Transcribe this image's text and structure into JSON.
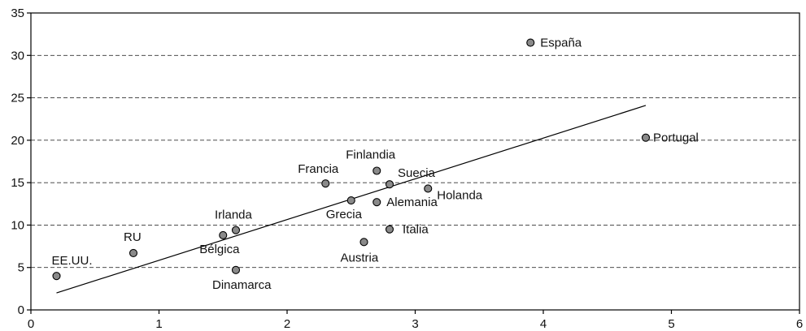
{
  "chart_data": {
    "type": "scatter",
    "title": "",
    "xlabel": "",
    "ylabel": "",
    "xlim": [
      0,
      6
    ],
    "ylim": [
      0,
      35
    ],
    "xticks": [
      0,
      1,
      2,
      3,
      4,
      5,
      6
    ],
    "yticks": [
      0,
      5,
      10,
      15,
      20,
      25,
      30,
      35
    ],
    "grid": "horizontal-dashed",
    "points": [
      {
        "label": "EE.UU.",
        "x": 0.2,
        "y": 4.0
      },
      {
        "label": "RU",
        "x": 0.8,
        "y": 6.7
      },
      {
        "label": "Bélgica",
        "x": 1.5,
        "y": 8.8
      },
      {
        "label": "Irlanda",
        "x": 1.6,
        "y": 9.4
      },
      {
        "label": "Dinamarca",
        "x": 1.6,
        "y": 4.7
      },
      {
        "label": "Francia",
        "x": 2.3,
        "y": 14.9
      },
      {
        "label": "Grecia",
        "x": 2.5,
        "y": 12.9
      },
      {
        "label": "Austria",
        "x": 2.6,
        "y": 8.0
      },
      {
        "label": "Finlandia",
        "x": 2.7,
        "y": 16.4
      },
      {
        "label": "Alemania",
        "x": 2.7,
        "y": 12.7
      },
      {
        "label": "Suecia",
        "x": 2.8,
        "y": 14.8
      },
      {
        "label": "Italia",
        "x": 2.8,
        "y": 9.5
      },
      {
        "label": "Holanda",
        "x": 3.1,
        "y": 14.3
      },
      {
        "label": "España",
        "x": 3.9,
        "y": 31.5
      },
      {
        "label": "Portugal",
        "x": 4.8,
        "y": 20.3
      }
    ],
    "trendline": {
      "x": [
        0.2,
        4.8
      ],
      "y": [
        2.0,
        24.1
      ]
    },
    "colors": {
      "point_fill": "#8a8a8a",
      "point_stroke": "#000000"
    }
  }
}
